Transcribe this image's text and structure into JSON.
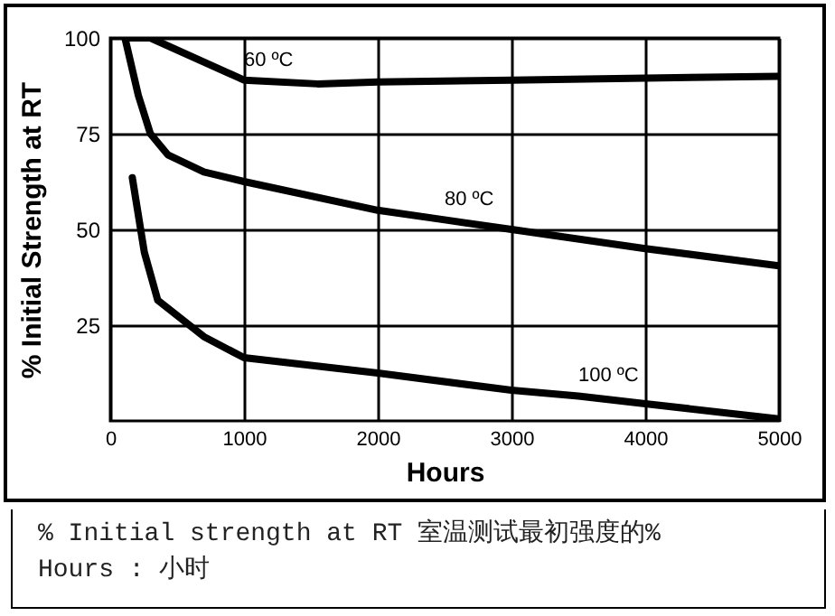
{
  "chart_data": {
    "type": "line",
    "xlabel": "Hours",
    "ylabel": "% Initial Strength at RT",
    "xlim": [
      0,
      5000
    ],
    "ylim": [
      0,
      100
    ],
    "xticks": [
      0,
      1000,
      2000,
      3000,
      4000,
      5000
    ],
    "yticks": [
      25,
      50,
      75,
      100
    ],
    "grid": true,
    "marker": "none",
    "line_style": "solid",
    "series": [
      {
        "name": "60 ºC",
        "color": "#000000",
        "x": [
          110,
          300,
          1000,
          1550,
          2000,
          3000,
          4000,
          5000
        ],
        "values": [
          100,
          100,
          89,
          88,
          88.5,
          89,
          89.5,
          90
        ]
      },
      {
        "name": "80 ºC",
        "color": "#000000",
        "x": [
          110,
          210,
          300,
          430,
          700,
          1000,
          2000,
          2500,
          3000,
          4000,
          5000
        ],
        "values": [
          100,
          85,
          75,
          69.5,
          65,
          62.5,
          55,
          52.5,
          50,
          45,
          40.5
        ]
      },
      {
        "name": "100 ºC",
        "color": "#000000",
        "x": [
          165,
          255,
          355,
          700,
          1000,
          2000,
          3000,
          3500,
          4000,
          5000
        ],
        "values": [
          63.5,
          44,
          31.5,
          22,
          16.5,
          12.5,
          8,
          6.5,
          4.5,
          0.5
        ]
      }
    ],
    "annotations": [
      "% Initial strength at RT 室温测试最初强度的%",
      "Hours : 小时"
    ]
  }
}
